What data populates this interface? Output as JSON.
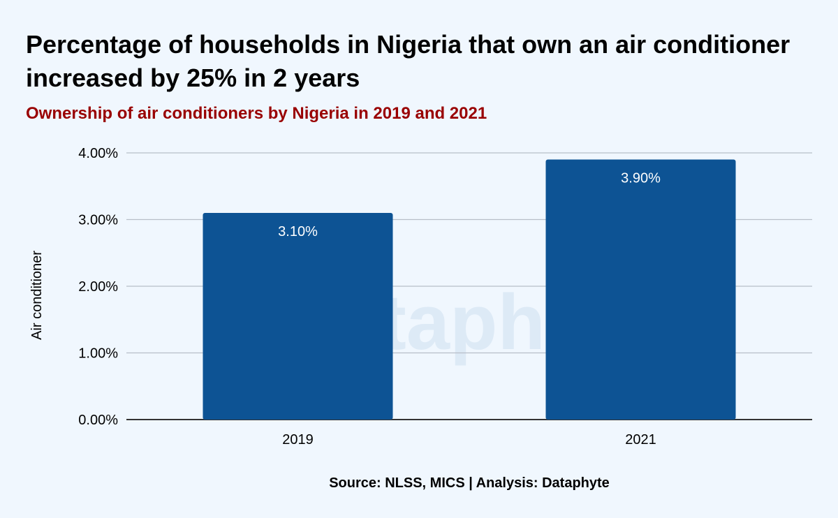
{
  "title": "Percentage of households in Nigeria that own an air conditioner increased by 25% in 2 years",
  "subtitle": "Ownership of air conditioners by Nigeria in 2019 and 2021",
  "source": "Source: NLSS, MICS | Analysis: Dataphyte",
  "watermark": "Dataphyte",
  "colors": {
    "bar": "#0d5394",
    "subtitle": "#990000",
    "background": "#f0f7fe",
    "grid": "#b7bec8"
  },
  "chart_data": {
    "type": "bar",
    "title": "Percentage of households in Nigeria that own an air conditioner increased by 25% in 2 years",
    "subtitle": "Ownership of air conditioners by Nigeria in 2019 and 2021",
    "categories": [
      "2019",
      "2021"
    ],
    "values": [
      3.1,
      3.9
    ],
    "data_labels": [
      "3.10%",
      "3.90%"
    ],
    "xlabel": "",
    "ylabel": "Air conditioner",
    "ylim": [
      0,
      4
    ],
    "yticks": [
      0,
      1,
      2,
      3,
      4
    ],
    "ytick_labels": [
      "0.00%",
      "1.00%",
      "2.00%",
      "3.00%",
      "4.00%"
    ],
    "grid": true,
    "legend": "none"
  }
}
